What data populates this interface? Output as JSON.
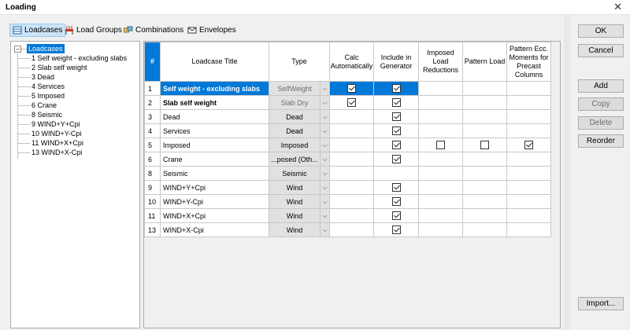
{
  "window": {
    "title": "Loading",
    "close_glyph": "✕"
  },
  "tabs": [
    {
      "label": "Loadcases",
      "icon": "loadcases-icon",
      "active": true
    },
    {
      "label": "Load Groups",
      "icon": "load-groups-icon"
    },
    {
      "label": "Combinations",
      "icon": "combinations-icon"
    },
    {
      "label": "Envelopes",
      "icon": "envelopes-icon"
    }
  ],
  "tree": {
    "root": "Loadcases",
    "expander": "−",
    "items": [
      "1 Self weight - excluding slabs",
      "2 Slab self weight",
      "3 Dead",
      "4 Services",
      "5 Imposed",
      "6 Crane",
      "8 Seismic",
      "9 WIND+Y+Cpi",
      "10 WIND+Y-Cpi",
      "11 WIND+X+Cpi",
      "13 WIND+X-Cpi"
    ]
  },
  "table": {
    "headers": {
      "num": "#",
      "title": "Loadcase Title",
      "type": "Type",
      "calc": "Calc Automatically",
      "include": "Include in Generator",
      "imposed_red": "Imposed Load Reductions",
      "pattern": "Pattern Load",
      "precast": "Pattern Ecc. Moments for Precast Columns"
    },
    "rows": [
      {
        "num": "1",
        "title": "Self weight - excluding slabs",
        "type": "SelfWeight",
        "bold": true,
        "grey": true,
        "calc": true,
        "include": true,
        "imposed_red": null,
        "pattern": null,
        "precast": null
      },
      {
        "num": "2",
        "title": "Slab self weight",
        "type": "Slab Dry",
        "bold": true,
        "grey": true,
        "calc": true,
        "include": true,
        "imposed_red": null,
        "pattern": null,
        "precast": null
      },
      {
        "num": "3",
        "title": "Dead",
        "type": "Dead",
        "calc": null,
        "include": true,
        "imposed_red": null,
        "pattern": null,
        "precast": null
      },
      {
        "num": "4",
        "title": "Services",
        "type": "Dead",
        "calc": null,
        "include": true,
        "imposed_red": null,
        "pattern": null,
        "precast": null
      },
      {
        "num": "5",
        "title": "Imposed",
        "type": "Imposed",
        "calc": null,
        "include": true,
        "imposed_red": false,
        "pattern": false,
        "precast": true
      },
      {
        "num": "6",
        "title": "Crane",
        "type": "...posed (Oth...",
        "calc": null,
        "include": true,
        "imposed_red": null,
        "pattern": null,
        "precast": null
      },
      {
        "num": "8",
        "title": "Seismic",
        "type": "Seismic",
        "calc": null,
        "include": null,
        "imposed_red": null,
        "pattern": null,
        "precast": null
      },
      {
        "num": "9",
        "title": "WIND+Y+Cpi",
        "type": "Wind",
        "calc": null,
        "include": true,
        "imposed_red": null,
        "pattern": null,
        "precast": null
      },
      {
        "num": "10",
        "title": "WIND+Y-Cpi",
        "type": "Wind",
        "calc": null,
        "include": true,
        "imposed_red": null,
        "pattern": null,
        "precast": null
      },
      {
        "num": "11",
        "title": "WIND+X+Cpi",
        "type": "Wind",
        "calc": null,
        "include": true,
        "imposed_red": null,
        "pattern": null,
        "precast": null
      },
      {
        "num": "13",
        "title": "WIND+X-Cpi",
        "type": "Wind",
        "calc": null,
        "include": true,
        "imposed_red": null,
        "pattern": null,
        "precast": null
      }
    ],
    "selected_row": 0
  },
  "buttons": {
    "ok": "OK",
    "cancel": "Cancel",
    "add": "Add",
    "copy": "Copy",
    "delete": "Delete",
    "reorder": "Reorder",
    "import": "Import..."
  }
}
